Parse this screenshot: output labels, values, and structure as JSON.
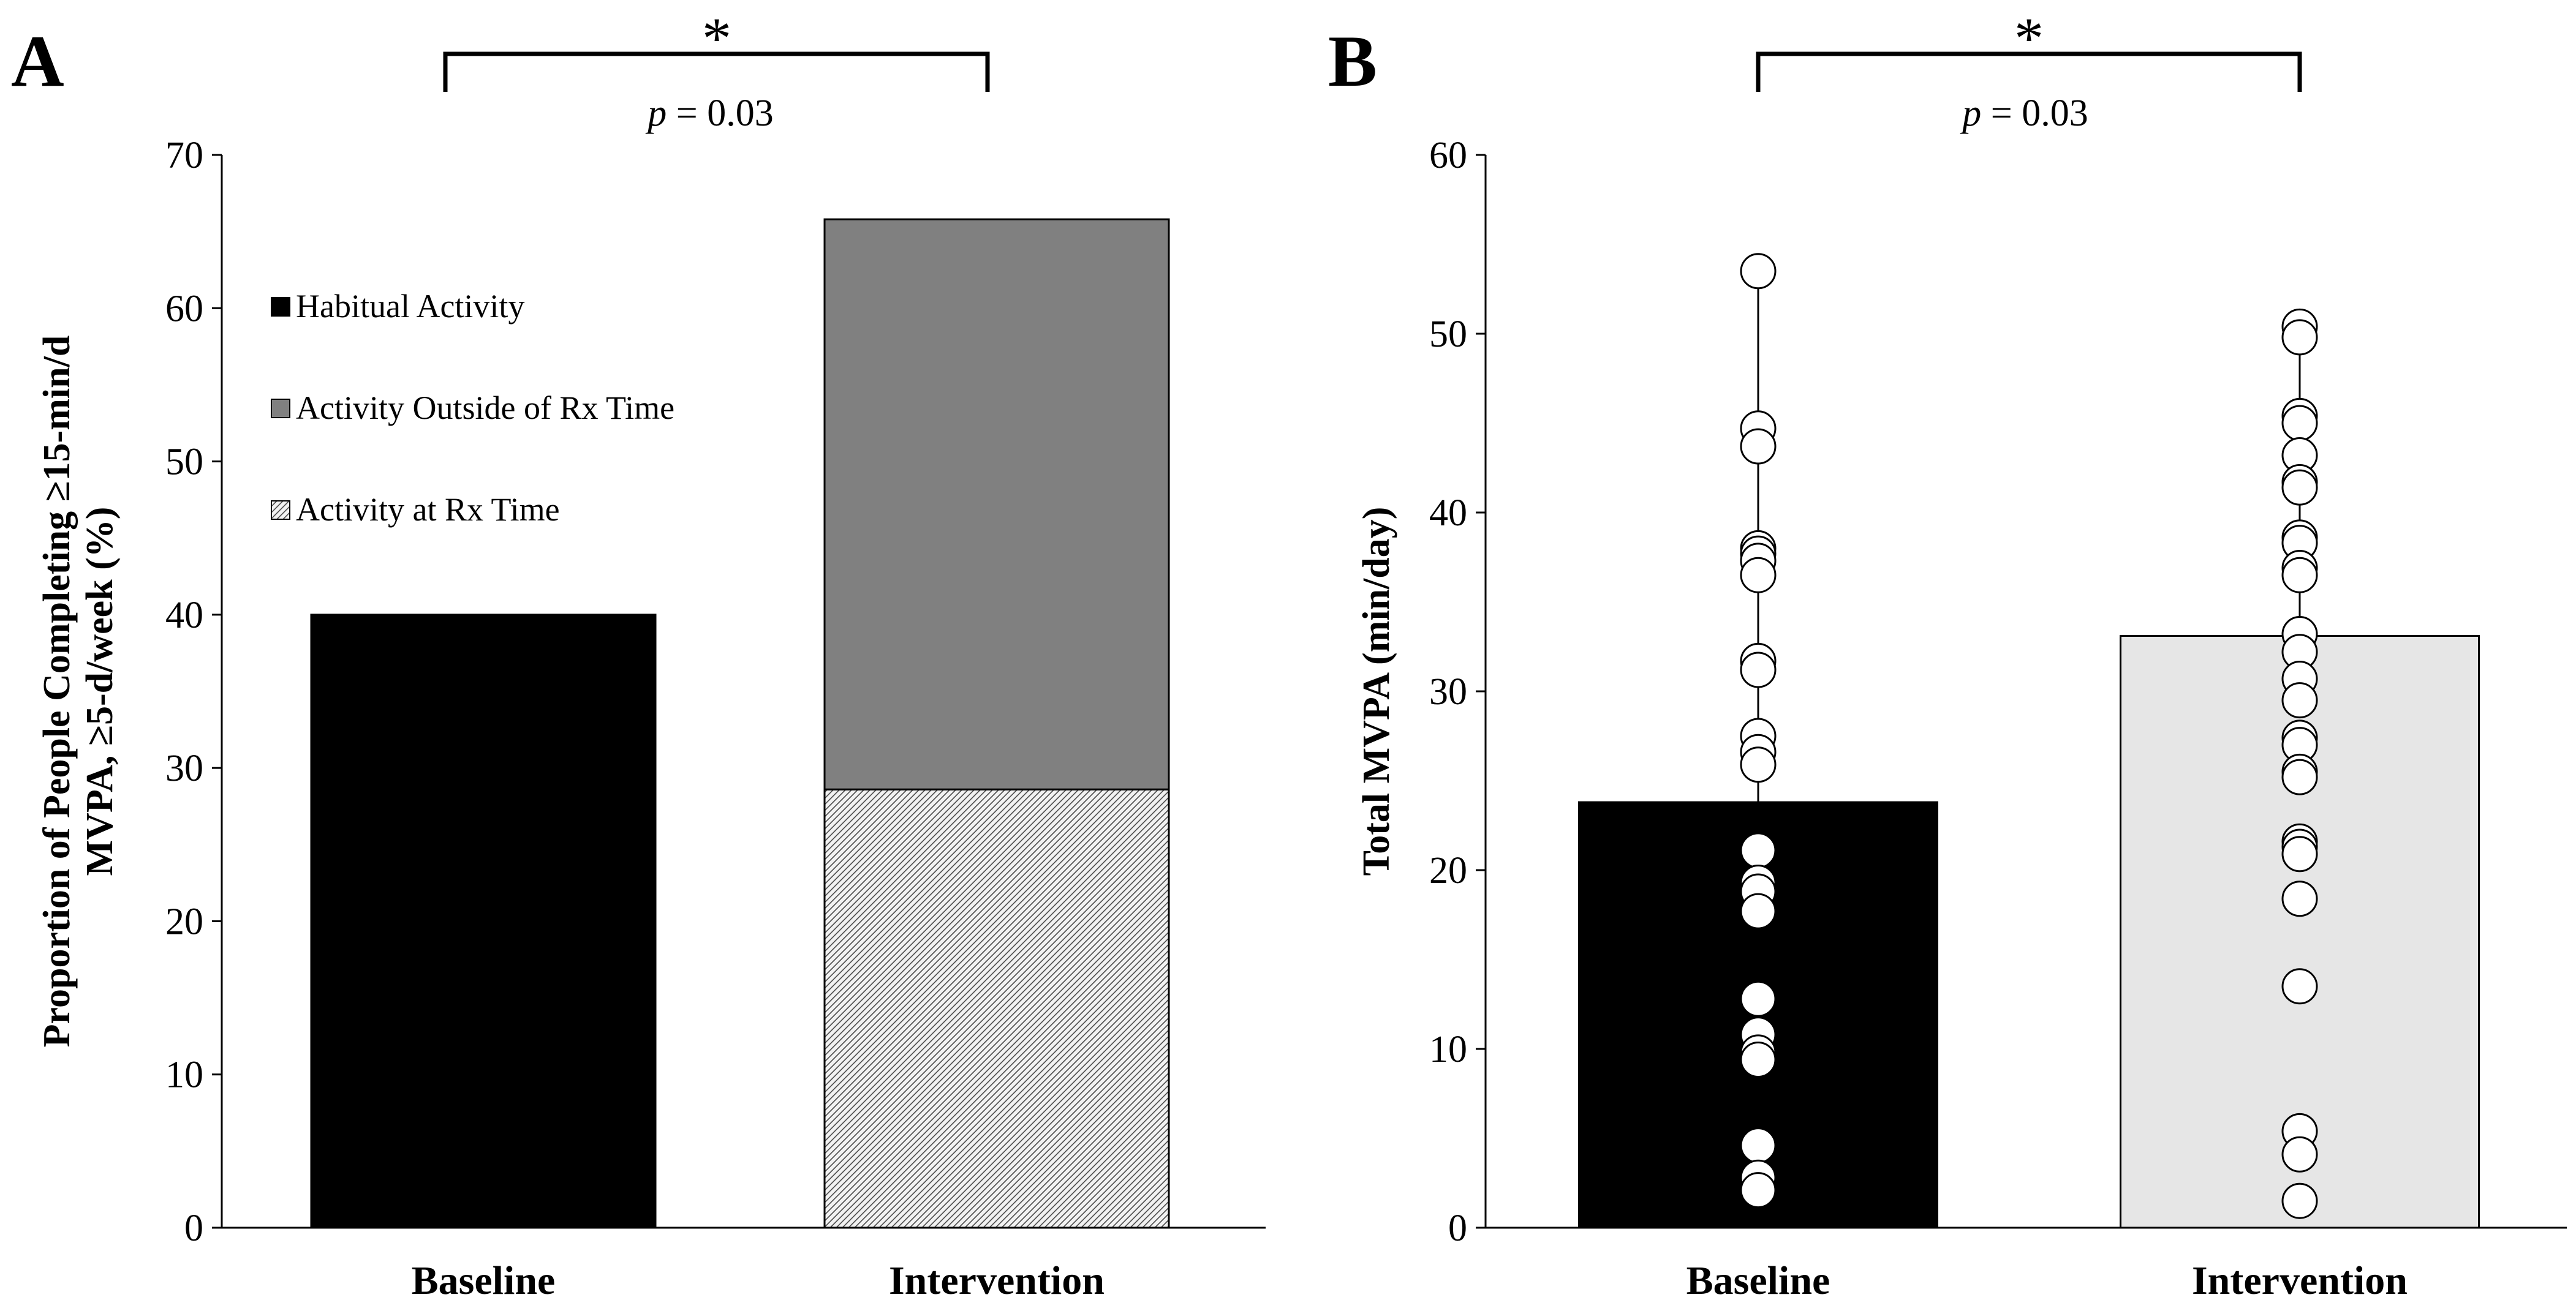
{
  "panel_a": {
    "letter": "A",
    "significance": {
      "star": "*",
      "p_label": "p",
      "p_value": " = 0.03"
    }
  },
  "panel_b": {
    "letter": "B",
    "significance": {
      "star": "*",
      "p_label": "p",
      "p_value": " = 0.03"
    }
  },
  "colors": {
    "habitual": "#000000",
    "outside_rx": "#808080",
    "at_rx_hatch_bg": "#f2f2f2",
    "intervention_bar_b": "#e6e6e6",
    "points": "#ffffff"
  },
  "chart_data": [
    {
      "id": "A",
      "type": "bar",
      "stacked": true,
      "categories": [
        "Baseline",
        "Intervention"
      ],
      "ylabel": [
        "Proportion of People Completing ≥15-min/d",
        "MVPA, ≥5-d/week (%)"
      ],
      "ylim": [
        0,
        70
      ],
      "yticks": [
        "0",
        "10",
        "20",
        "30",
        "40",
        "50",
        "60",
        "70"
      ],
      "series": [
        {
          "name": "Habitual Activity",
          "key": "habitual",
          "values": [
            40,
            0
          ]
        },
        {
          "name": "Activity at Rx Time",
          "key": "at_rx",
          "values": [
            0,
            28.6
          ]
        },
        {
          "name": "Activity Outside of Rx Time",
          "key": "outside_rx",
          "values": [
            0,
            37.2
          ]
        }
      ],
      "legend": [
        "Habitual Activity",
        "Activity Outside of Rx Time",
        "Activity at Rx Time"
      ],
      "legend_position": "top-left"
    },
    {
      "id": "B",
      "type": "bar",
      "categories": [
        "Baseline",
        "Intervention"
      ],
      "ylabel": "Total MVPA (min/day)",
      "ylim": [
        0,
        60
      ],
      "yticks": [
        "0",
        "10",
        "20",
        "30",
        "40",
        "50",
        "60"
      ],
      "means": [
        23.8,
        33.1
      ],
      "error_bars": [
        {
          "low": 23.8,
          "high": 53.5
        },
        {
          "low": 33.1,
          "high": 50.5
        }
      ],
      "points": [
        [
          53.5,
          44.7,
          43.7,
          38.0,
          37.7,
          37.3,
          36.5,
          31.7,
          31.2,
          27.5,
          26.6,
          25.9,
          21.1,
          19.3,
          18.8,
          17.7,
          12.8,
          10.8,
          9.8,
          9.4,
          4.6,
          2.8,
          2.1
        ],
        [
          50.4,
          49.8,
          45.4,
          45.0,
          43.2,
          41.7,
          41.4,
          38.6,
          38.3,
          36.9,
          36.5,
          33.2,
          32.2,
          30.7,
          29.5,
          27.4,
          27.0,
          25.5,
          25.2,
          21.6,
          21.3,
          20.9,
          18.4,
          13.5,
          5.4,
          4.1,
          1.5
        ]
      ]
    }
  ]
}
